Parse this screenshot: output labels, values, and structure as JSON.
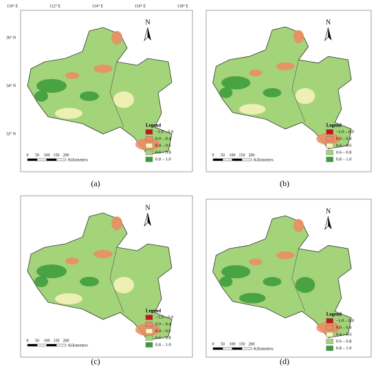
{
  "panels": [
    {
      "label": "(a)",
      "north": "N",
      "legend": {
        "title": "Legend",
        "items": [
          {
            "label": "−1.0 – 0.0",
            "color": "#c0171c"
          },
          {
            "label": "0.0 – 0.4",
            "color": "#ef8a62"
          },
          {
            "label": "0.4 – 0.6",
            "color": "#fbf3bd"
          },
          {
            "label": "0.6 – 0.8",
            "color": "#a3d47a"
          },
          {
            "label": "0.8 – 1.0",
            "color": "#3b9a3a"
          }
        ]
      },
      "scale": {
        "ticks": [
          "0",
          "50",
          "100",
          "150",
          "200"
        ],
        "unit": "Kilometers"
      },
      "lon_labels": [
        "110° E",
        "112° E",
        "114° E",
        "116° E",
        "118° E"
      ],
      "lat_labels": [
        "36° N",
        "34° N",
        "32° N"
      ]
    },
    {
      "label": "(b)",
      "north": "N",
      "legend": {
        "title": "Legend",
        "items": [
          {
            "label": "−1.0 – 0.0",
            "color": "#c0171c"
          },
          {
            "label": "0.0 – 0.4",
            "color": "#ef8a62"
          },
          {
            "label": "0.4 – 0.6",
            "color": "#fbf3bd"
          },
          {
            "label": "0.6 – 0.8",
            "color": "#a3d47a"
          },
          {
            "label": "0.8 – 1.0",
            "color": "#3b9a3a"
          }
        ]
      },
      "scale": {
        "ticks": [
          "0",
          "50",
          "100",
          "150",
          "200"
        ],
        "unit": "Kilometers"
      }
    },
    {
      "label": "(c)",
      "north": "N",
      "legend": {
        "title": "Legend",
        "items": [
          {
            "label": "−1.0 – 0.0",
            "color": "#c0171c"
          },
          {
            "label": "0.0 – 0.4",
            "color": "#ef8a62"
          },
          {
            "label": "0.4 – 0.6",
            "color": "#fbf3bd"
          },
          {
            "label": "0.6 – 0.8",
            "color": "#a3d47a"
          },
          {
            "label": "0.8 – 1.0",
            "color": "#3b9a3a"
          }
        ]
      },
      "scale": {
        "ticks": [
          "0",
          "50",
          "100",
          "150",
          "200"
        ],
        "unit": "Kilometers"
      }
    },
    {
      "label": "(d)",
      "north": "N",
      "legend": {
        "title": "Legend",
        "items": [
          {
            "label": "−1.0 – 0.0",
            "color": "#c0171c"
          },
          {
            "label": "0.0 – 0.4",
            "color": "#ef8a62"
          },
          {
            "label": "0.4 – 0.6",
            "color": "#fbf3bd"
          },
          {
            "label": "0.6 – 0.8",
            "color": "#a3d47a"
          },
          {
            "label": "0.8 – 1.0",
            "color": "#3b9a3a"
          }
        ]
      },
      "scale": {
        "ticks": [
          "0",
          "50",
          "100",
          "150",
          "200"
        ],
        "unit": "Kilometers"
      }
    }
  ]
}
